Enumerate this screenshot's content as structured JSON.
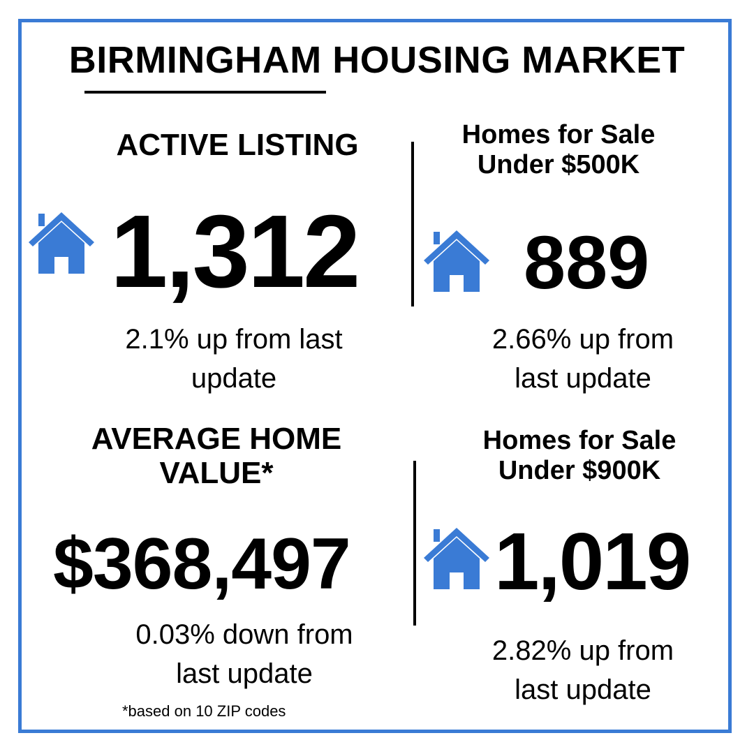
{
  "title": "BIRMINGHAM HOUSING MARKET",
  "accent_color": "#3a7bd5",
  "stats": {
    "active_listing": {
      "label": "ACTIVE LISTING",
      "value": "1,312",
      "change_line1": "2.1% up from last",
      "change_line2": "update",
      "icon": "house-icon"
    },
    "under_500k": {
      "label_line1": "Homes for Sale",
      "label_line2": "Under $500K",
      "value": "889",
      "change_line1": "2.66% up from",
      "change_line2": "last update",
      "icon": "house-icon"
    },
    "avg_home_value": {
      "label_line1": "AVERAGE HOME",
      "label_line2": "VALUE*",
      "value": "$368,497",
      "change_line1": "0.03% down from",
      "change_line2": "last update"
    },
    "under_900k": {
      "label_line1": "Homes for Sale",
      "label_line2": "Under $900K",
      "value": "1,019",
      "change_line1": "2.82% up from",
      "change_line2": "last update",
      "icon": "house-icon"
    }
  },
  "footnote": "*based on 10 ZIP codes"
}
